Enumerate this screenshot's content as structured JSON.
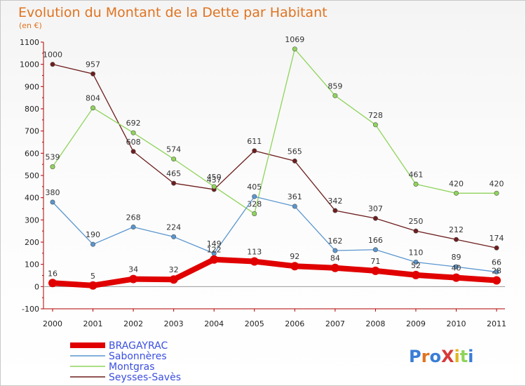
{
  "chart_data": {
    "type": "line",
    "title": "Evolution du Montant de la Dette par Habitant",
    "subtitle": "(en €)",
    "x": [
      "2000",
      "2001",
      "2002",
      "2003",
      "2004",
      "2005",
      "2006",
      "2007",
      "2008",
      "2009",
      "2010",
      "2011"
    ],
    "ylim": [
      -100,
      1100
    ],
    "yticks": [
      "-100",
      "0",
      "100",
      "200",
      "300",
      "400",
      "500",
      "600",
      "700",
      "800",
      "900",
      "1000",
      "1100"
    ],
    "grid": false,
    "legend_position": "bottom-left",
    "series": [
      {
        "name": "BRAGAYRAC",
        "color": "#e00000",
        "values": [
          16,
          5,
          34,
          32,
          122,
          113,
          92,
          84,
          71,
          52,
          40,
          28
        ]
      },
      {
        "name": "Sabonnères",
        "color": "#5a96cf",
        "values": [
          380,
          190,
          268,
          224,
          149,
          405,
          361,
          162,
          166,
          110,
          89,
          66
        ]
      },
      {
        "name": "Montgras",
        "color": "#8fd45a",
        "values": [
          539,
          804,
          692,
          574,
          450,
          328,
          1069,
          859,
          728,
          461,
          420,
          420
        ]
      },
      {
        "name": "Seysses-Savès",
        "color": "#6e1d1d",
        "values": [
          1000,
          957,
          608,
          465,
          437,
          611,
          565,
          342,
          307,
          250,
          212,
          174
        ]
      }
    ]
  },
  "logo": {
    "text": "ProXiti"
  }
}
